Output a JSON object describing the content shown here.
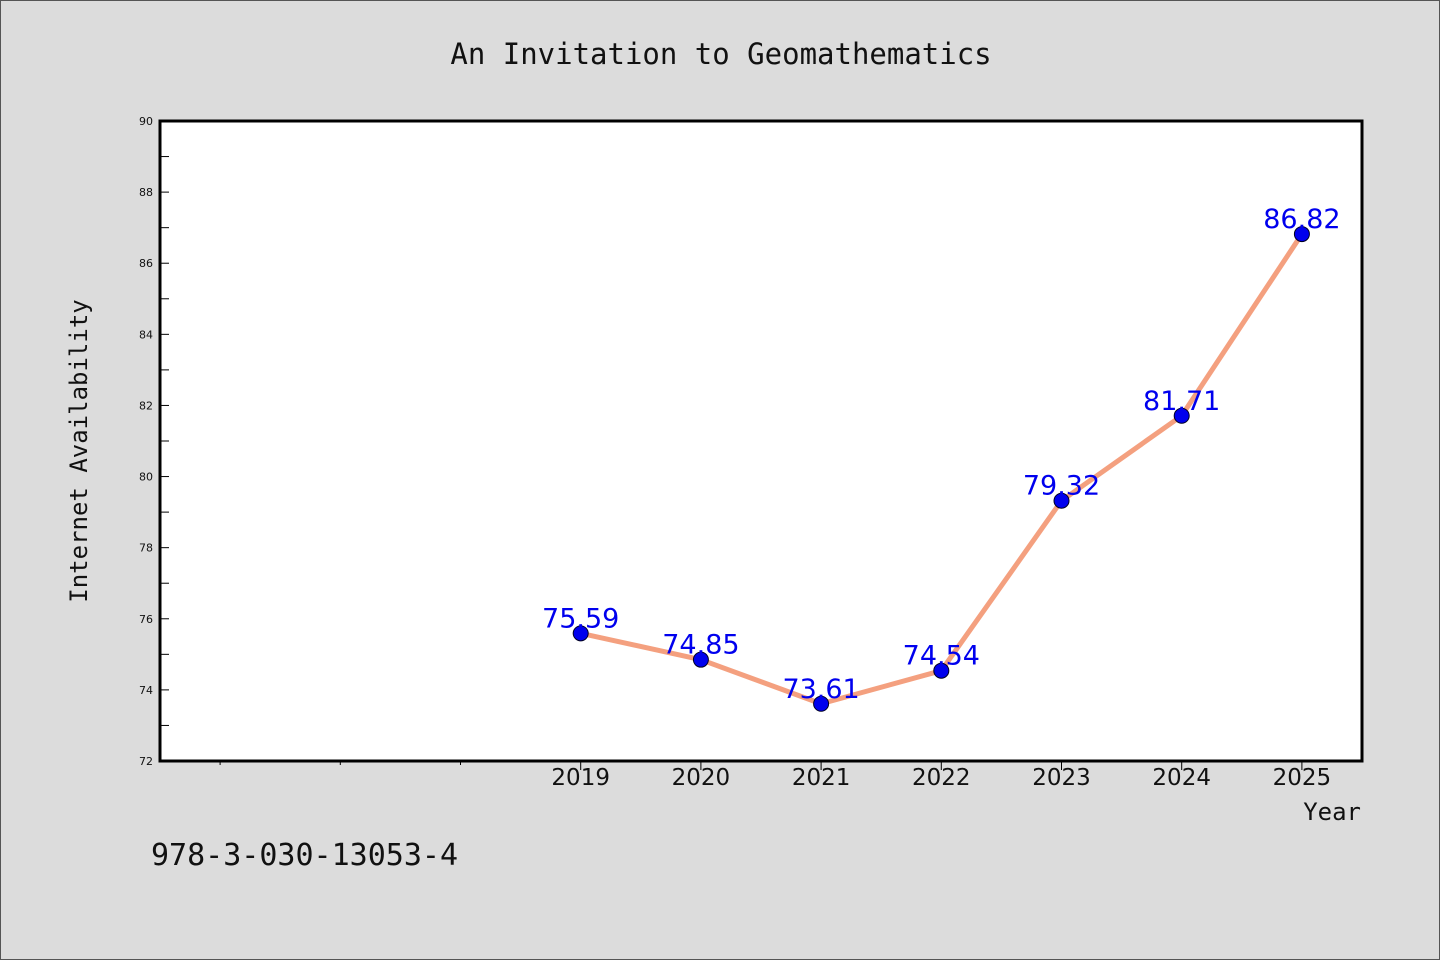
{
  "chart_data": {
    "type": "line",
    "title": "An Invitation to Geomathematics",
    "xlabel": "Year",
    "ylabel": "Internet Availability",
    "categories": [
      "2019",
      "2020",
      "2021",
      "2022",
      "2023",
      "2024",
      "2025"
    ],
    "series": [
      {
        "values": [
          75.59,
          74.85,
          73.61,
          74.54,
          79.32,
          81.71,
          86.82
        ]
      }
    ],
    "data_labels": [
      "75.59",
      "74.85",
      "73.61",
      "74.54",
      "79.32",
      "81.71",
      "86.82"
    ],
    "ylim": [
      72,
      90
    ],
    "yticks": [
      "72",
      "74",
      "76",
      "78",
      "80",
      "82",
      "84",
      "86",
      "88",
      "90"
    ],
    "x_range": [
      2015.5,
      2025.5
    ],
    "grid": false,
    "colors": {
      "line": "#f4a07f",
      "marker": "#0000ee",
      "label": "#0000ee",
      "background": "#dcdcdc",
      "plot": "#ffffff"
    }
  },
  "footer": {
    "isbn": "978-3-030-13053-4"
  }
}
